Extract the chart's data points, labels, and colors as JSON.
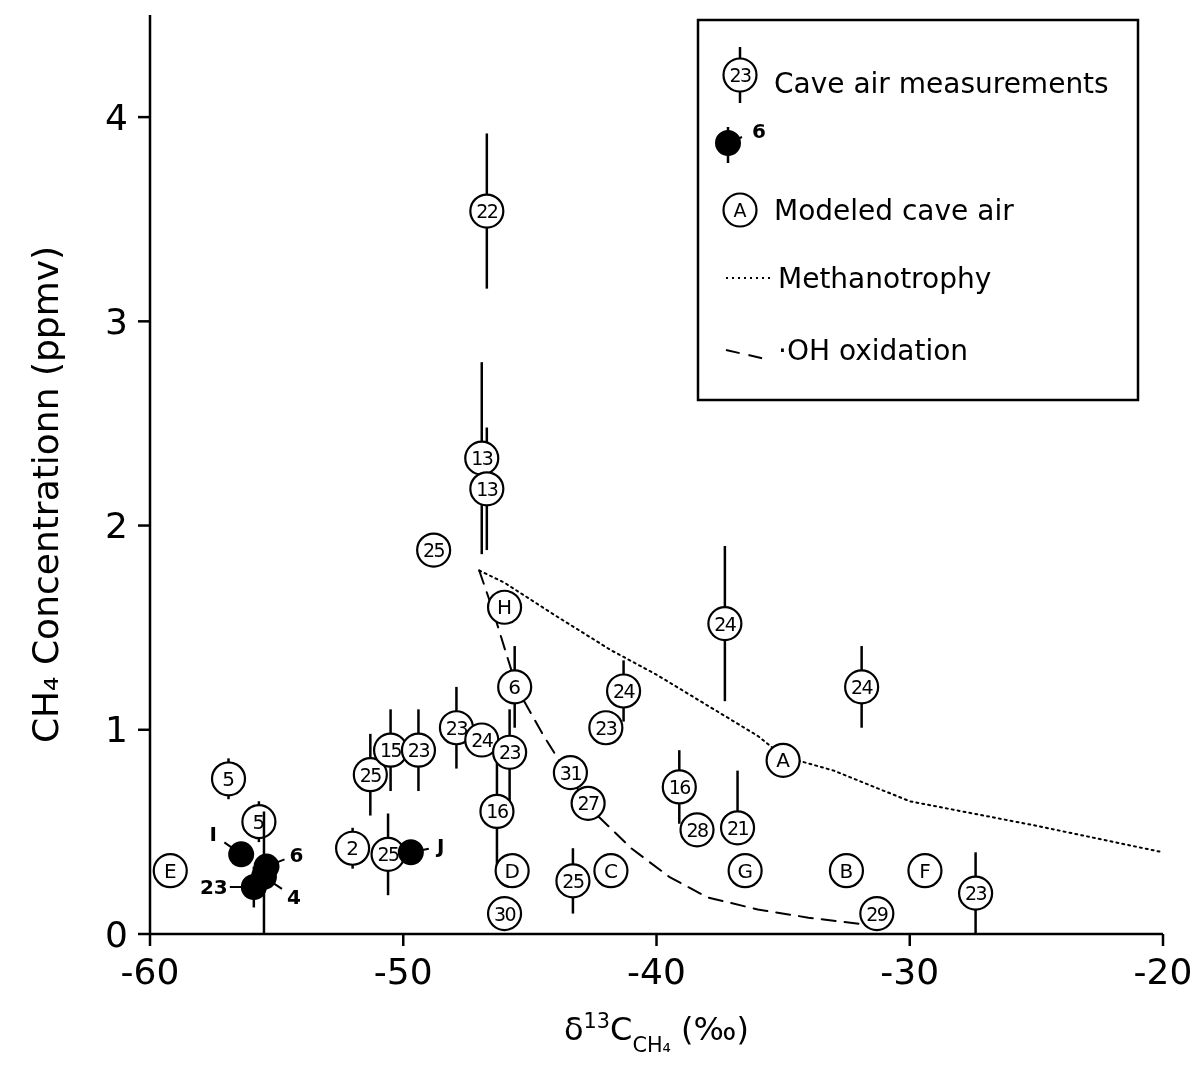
{
  "chart_data": {
    "type": "scatter",
    "xlabel": "δ$^{13}$C$_{CH₄}$  (‰)",
    "ylabel": "CH₄ Concentrationn (ppmv)",
    "xlim": [
      -60,
      -20
    ],
    "ylim": [
      0,
      4.5
    ],
    "xticks": [
      -60,
      -50,
      -40,
      -30,
      -20
    ],
    "yticks": [
      0,
      1,
      2,
      3,
      4
    ],
    "grid": false,
    "legend": "top right",
    "series": [
      {
        "name": "Cave air measurements",
        "marker": "circle",
        "color": "#000000",
        "x": [
          -27.4,
          -56.9,
          -55.7,
          -52,
          -50.6,
          -51.3,
          -50.5,
          -49.4,
          -47.9,
          -46.9,
          -45.8,
          -45.6,
          -46.3,
          -46,
          -43.4,
          -42.7,
          -43.3,
          -41.3,
          -42,
          -37.3,
          -31.9,
          -39.1,
          -38.4,
          -36.8,
          -31.3,
          -46.7,
          -46.9,
          -46.7,
          -48.8
        ],
        "values": [
          0.2,
          0.76,
          0.55,
          0.42,
          0.39,
          0.78,
          0.9,
          0.9,
          1.01,
          0.95,
          0.89,
          1.21,
          0.6,
          0.1,
          0.79,
          0.64,
          0.26,
          1.19,
          1.01,
          1.52,
          1.21,
          0.72,
          0.51,
          0.52,
          0.1,
          3.54,
          2.33,
          2.18,
          1.88
        ],
        "errors": [
          0.2,
          0.1,
          0.1,
          0.1,
          0.2,
          0.2,
          0.2,
          0.2,
          0.2,
          null,
          [
            0.6,
            1.1
          ],
          0.2,
          [
            0.3,
            0.9
          ],
          null,
          null,
          null,
          0.16,
          0.15,
          null,
          0.38,
          0.2,
          0.18,
          null,
          [
            0.5,
            0.8
          ],
          null,
          0.38,
          0.47,
          0.3,
          null
        ]
      },
      {
        "marker": "circle",
        "color": "#000000",
        "x": [
          -55.4,
          -56.4,
          -55.9,
          -55.5,
          -49.7
        ],
        "values": [
          0.33,
          0.39,
          0.23,
          0.28,
          0.4
        ],
        "errors": [
          null,
          null,
          0.1,
          [
            0,
            0.6
          ],
          null
        ]
      },
      {
        "name": "Modeled cave air",
        "marker": "circle",
        "color": "#000000",
        "x": [
          -35,
          -32.5,
          -41.8,
          -45.7,
          -59.2,
          -29.4,
          -36.5,
          -46
        ],
        "values": [
          0.85,
          0.31,
          0.31,
          0.31,
          0.31,
          0.31,
          0.31,
          1.6
        ]
      },
      {
        "name": "Methanotrophy",
        "type": "line",
        "line_style": "dotted",
        "color": "#000000",
        "x": [
          -47,
          -46,
          -44,
          -41.8,
          -40,
          -38,
          -36,
          -35,
          -33,
          -30,
          -25,
          -20
        ],
        "values": [
          1.78,
          1.72,
          1.56,
          1.39,
          1.27,
          1.12,
          0.97,
          0.87,
          0.8,
          0.65,
          0.53,
          0.4
        ]
      },
      {
        "name": "·OH oxidation",
        "type": "line",
        "line_style": "dashed",
        "color": "#000000",
        "x": [
          -47,
          -46.5,
          -46,
          -45.5,
          -44.5,
          -43.5,
          -42.5,
          -41,
          -39.5,
          -38,
          -36,
          -34,
          -32,
          -31.3
        ],
        "values": [
          1.78,
          1.6,
          1.4,
          1.2,
          0.98,
          0.78,
          0.6,
          0.42,
          0.28,
          0.18,
          0.12,
          0.08,
          0.05,
          0.04
        ]
      }
    ],
    "annotations": [
      "23",
      "6",
      "A",
      {
        "text": "23",
        "x": -27.4,
        "y": 0.2
      },
      {
        "text": "5",
        "x": -56.9,
        "y": 0.76
      },
      {
        "text": "5",
        "x": -55.7,
        "y": 0.55
      },
      {
        "text": "2",
        "x": -52,
        "y": 0.42
      },
      {
        "text": "25",
        "x": -50.6,
        "y": 0.39
      },
      {
        "text": "25",
        "x": -51.3,
        "y": 0.78
      },
      {
        "text": "15",
        "x": -50.5,
        "y": 0.9
      },
      {
        "text": "23",
        "x": -49.4,
        "y": 0.9
      },
      {
        "text": "23",
        "x": -47.9,
        "y": 1.01
      },
      {
        "text": "24",
        "x": -46.9,
        "y": 0.95
      },
      {
        "text": "23",
        "x": -45.8,
        "y": 0.89
      },
      {
        "text": "6",
        "x": -45.6,
        "y": 1.21
      },
      {
        "text": "16",
        "x": -46.3,
        "y": 0.6
      },
      {
        "text": "30",
        "x": -46,
        "y": 0.1
      },
      {
        "text": "31",
        "x": -43.4,
        "y": 0.79
      },
      {
        "text": "27",
        "x": -42.7,
        "y": 0.64
      },
      {
        "text": "25",
        "x": -43.3,
        "y": 0.26
      },
      {
        "text": "24",
        "x": -41.3,
        "y": 1.19
      },
      {
        "text": "23",
        "x": -42,
        "y": 1.01
      },
      {
        "text": "24",
        "x": -37.3,
        "y": 1.52
      },
      {
        "text": "24",
        "x": -31.9,
        "y": 1.21
      },
      {
        "text": "16",
        "x": -39.1,
        "y": 0.72
      },
      {
        "text": "28",
        "x": -38.4,
        "y": 0.51
      },
      {
        "text": "21",
        "x": -36.8,
        "y": 0.52
      },
      {
        "text": "29",
        "x": -31.3,
        "y": 0.1
      },
      {
        "text": "22",
        "x": -46.7,
        "y": 3.54
      },
      {
        "text": "13",
        "x": -46.9,
        "y": 2.33
      },
      {
        "text": "13",
        "x": -46.7,
        "y": 2.18
      },
      {
        "text": "25",
        "x": -48.8,
        "y": 1.88
      },
      {
        "text": "6",
        "x": -55.4,
        "y": 0.33
      },
      {
        "text": "I",
        "x": -56.4,
        "y": 0.39
      },
      {
        "text": "23",
        "x": -55.9,
        "y": 0.23
      },
      {
        "text": "4",
        "x": -55.5,
        "y": 0.28
      },
      {
        "text": "J",
        "x": -49.7,
        "y": 0.4
      },
      {
        "text": "A",
        "x": -35,
        "y": 0.85
      },
      {
        "text": "B",
        "x": -32.5,
        "y": 0.31
      },
      {
        "text": "C",
        "x": -41.8,
        "y": 0.31
      },
      {
        "text": "D",
        "x": -45.7,
        "y": 0.31
      },
      {
        "text": "E",
        "x": -59.2,
        "y": 0.31
      },
      {
        "text": "F",
        "x": -29.4,
        "y": 0.31
      },
      {
        "text": "G",
        "x": -36.5,
        "y": 0.31
      },
      {
        "text": "H",
        "x": -46,
        "y": 1.6
      }
    ]
  }
}
